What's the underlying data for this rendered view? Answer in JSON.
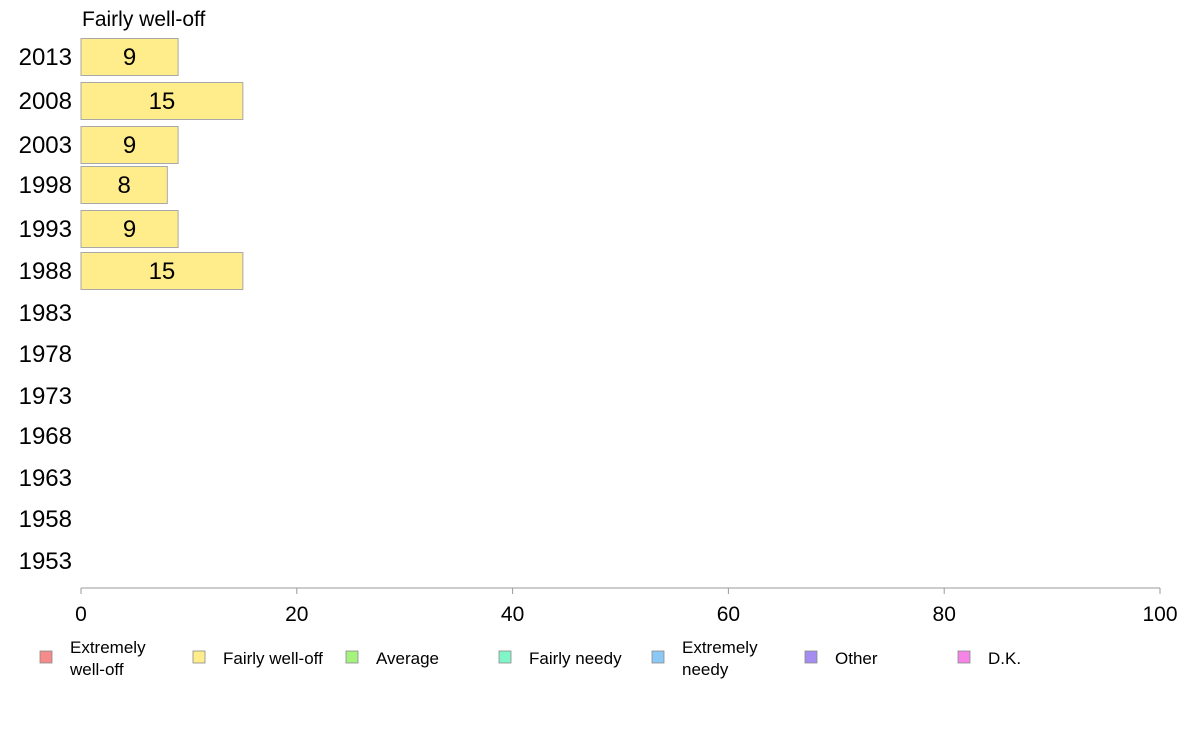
{
  "chart_data": {
    "type": "bar",
    "orientation": "horizontal",
    "title": "Fairly well-off",
    "categories": [
      "2013",
      "2008",
      "2003",
      "1998",
      "1993",
      "1988",
      "1983",
      "1978",
      "1973",
      "1968",
      "1963",
      "1958",
      "1953"
    ],
    "series": [
      {
        "name": "Fairly well-off",
        "color": "#ffec8b",
        "values": [
          9,
          15,
          9,
          8,
          9,
          15,
          null,
          null,
          null,
          null,
          null,
          null,
          null
        ]
      }
    ],
    "xlim": [
      0,
      100
    ],
    "xticks": [
      0,
      20,
      40,
      60,
      80,
      100
    ],
    "grid": false,
    "legend_position": "bottom",
    "legend": [
      {
        "label": "Extremely\nwell-off",
        "color": "#f58b8b"
      },
      {
        "label": "Fairly well-off",
        "color": "#ffec8b"
      },
      {
        "label": "Average",
        "color": "#a6f27e"
      },
      {
        "label": "Fairly needy",
        "color": "#7ff5c8"
      },
      {
        "label": "Extremely\nneedy",
        "color": "#8cc8f5"
      },
      {
        "label": "Other",
        "color": "#a58cf0"
      },
      {
        "label": "D.K.",
        "color": "#f584e6"
      }
    ]
  }
}
